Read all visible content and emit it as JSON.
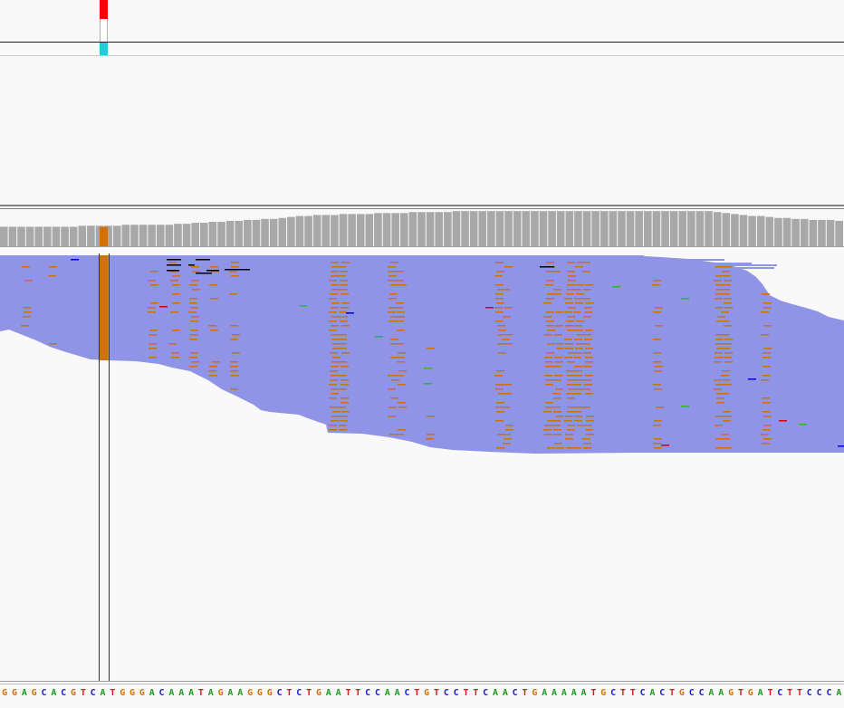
{
  "colors": {
    "background": "#f9f9f9",
    "read_fill": "#8f94e6",
    "coverage_bar": "#a8a8a8",
    "mismatch_g": "#d17105",
    "mismatch_a": "#2eb82e",
    "mismatch_c": "#0000d6",
    "mismatch_t": "#d60000",
    "deletion": "#000000",
    "variant_alt": "#ff0000",
    "variant_genotype": "#22ccdd",
    "base_colors": {
      "A": "#1a9b1a",
      "C": "#1c1cd0",
      "G": "#d17105",
      "T": "#d01c1c"
    }
  },
  "variant_track": {
    "marker": "variant-site"
  },
  "sequence_track": {
    "bases": "GGAGCACGTCATGGGACAAATAGAAGGGCTCTGAATTCCAACTGTCCTTCAACTGAAAAATGCTTCACTGCCAAGTGATCTTCCCA"
  },
  "coverage_track": {
    "description_visible": "",
    "depth_profile": [
      20,
      20,
      20,
      20,
      20,
      20,
      20,
      20,
      20,
      21,
      21,
      21,
      21,
      21,
      22,
      22,
      22,
      22,
      22,
      22,
      23,
      23,
      24,
      24,
      25,
      25,
      26,
      26,
      27,
      27,
      28,
      28,
      29,
      30,
      31,
      31,
      32,
      32,
      32,
      33,
      33,
      33,
      33,
      34,
      34,
      34,
      34,
      35,
      35,
      35,
      35,
      35,
      36,
      36,
      36,
      36,
      36,
      36,
      36,
      36,
      36,
      36,
      36,
      36,
      36,
      36,
      36,
      36,
      36,
      36,
      36,
      36,
      36,
      36,
      36,
      36,
      36,
      36,
      36,
      36,
      36,
      36,
      35,
      34,
      33,
      32,
      31,
      31,
      30,
      29,
      29,
      28,
      28,
      27,
      27,
      27,
      26
    ]
  },
  "alignment_track": {
    "highlight_column": "mismatch",
    "read_count_visible": ""
  }
}
